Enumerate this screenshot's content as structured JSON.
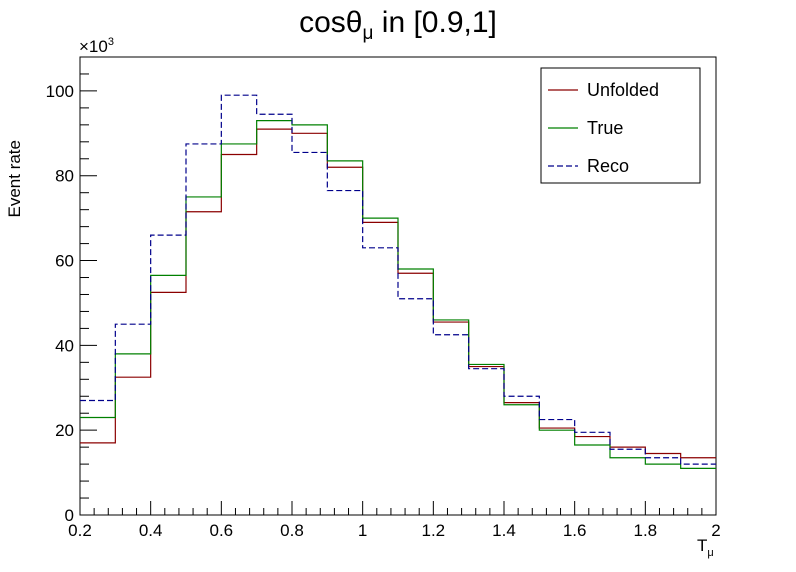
{
  "chart_data": {
    "type": "line",
    "title": "cosθμ in [0.9,1]",
    "title_main": "cosθ",
    "title_sub": "μ",
    "title_rest": " in [0.9,1]",
    "xlabel": "T",
    "xlabel_sub": "μ",
    "ylabel": "Event rate",
    "y_multiplier": "×10",
    "y_multiplier_exp": "3",
    "xlim": [
      0.2,
      2.0
    ],
    "ylim": [
      0,
      108
    ],
    "x_ticks": [
      0.2,
      0.4,
      0.6,
      0.8,
      1.0,
      1.2,
      1.4,
      1.6,
      1.8,
      2.0
    ],
    "x_tick_labels": [
      "0.2",
      "0.4",
      "0.6",
      "0.8",
      "1",
      "1.2",
      "1.4",
      "1.6",
      "1.8",
      "2"
    ],
    "y_ticks": [
      0,
      20,
      40,
      60,
      80,
      100
    ],
    "y_tick_labels": [
      "0",
      "20",
      "40",
      "60",
      "80",
      "100"
    ],
    "bin_edges": [
      0.2,
      0.3,
      0.4,
      0.5,
      0.6,
      0.7,
      0.8,
      0.9,
      1.0,
      1.1,
      1.2,
      1.3,
      1.4,
      1.5,
      1.6,
      1.7,
      1.8,
      1.9,
      2.0
    ],
    "legend_position": "top-right",
    "grid": false,
    "series": [
      {
        "name": "Unfolded",
        "color": "#8b0000",
        "style": "solid",
        "values": [
          17,
          32.5,
          52.5,
          71.5,
          85,
          91,
          90,
          82,
          69,
          57,
          45.5,
          35,
          26.5,
          20.5,
          18.5,
          16,
          14.5,
          13.5
        ]
      },
      {
        "name": "True",
        "color": "#008000",
        "style": "solid",
        "values": [
          23,
          38,
          56.5,
          75,
          87.5,
          93,
          92,
          83.5,
          70,
          58,
          46,
          35.5,
          26,
          20,
          16.5,
          13.5,
          12,
          11
        ]
      },
      {
        "name": "Reco",
        "color": "#00008b",
        "style": "dashed",
        "values": [
          27,
          45,
          66,
          87.5,
          99,
          94.5,
          85.5,
          76.5,
          63,
          51,
          42.5,
          34.5,
          28,
          22.5,
          19.5,
          15.5,
          13.5,
          12
        ]
      }
    ]
  }
}
